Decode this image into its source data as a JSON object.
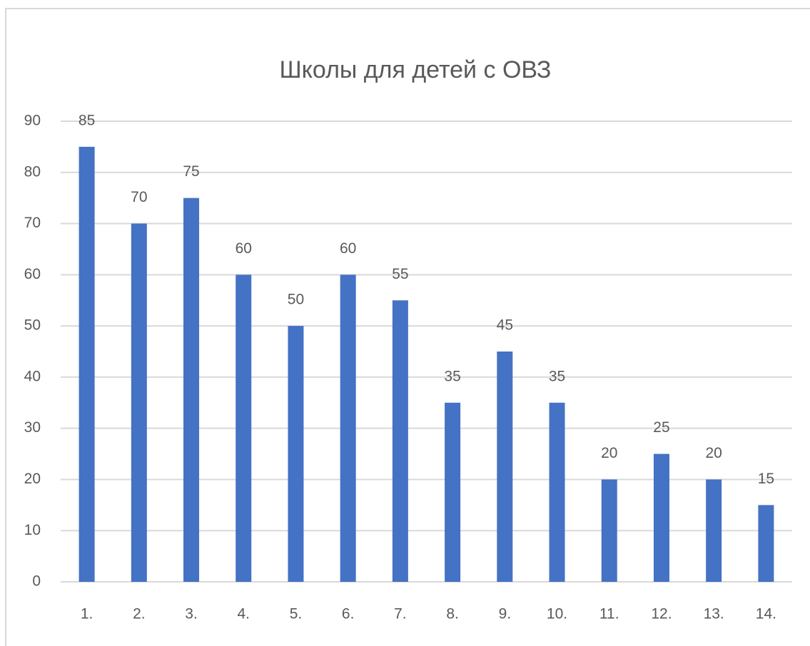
{
  "chart_data": {
    "type": "bar",
    "title": "Школы для детей с ОВЗ",
    "categories": [
      "1.",
      "2.",
      "3.",
      "4.",
      "5.",
      "6.",
      "7.",
      "8.",
      "9.",
      "10.",
      "11.",
      "12.",
      "13.",
      "14."
    ],
    "values": [
      85,
      70,
      75,
      60,
      50,
      60,
      55,
      35,
      45,
      35,
      20,
      25,
      20,
      15
    ],
    "color": "#4472c4",
    "ylim": [
      0,
      90
    ],
    "yticks": [
      0,
      10,
      20,
      30,
      40,
      50,
      60,
      70,
      80,
      90
    ],
    "grid": true
  }
}
